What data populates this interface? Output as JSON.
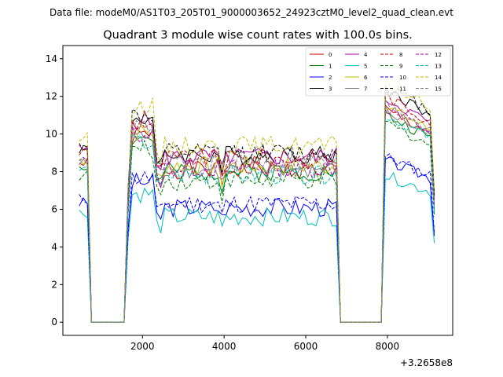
{
  "header": {
    "datafile": "Data file: modeM0/AS1T03_205T01_9000003652_24923cztM0_level2_quad_clean.evt"
  },
  "chart_data": {
    "type": "line",
    "title": "Quadrant 3 module wise count rates with 100.0s bins.",
    "xlabel": "",
    "ylabel": "",
    "x_offset_label": "+3.2658e8",
    "xlim": [
      50,
      9600
    ],
    "ylim": [
      -0.7,
      14.7
    ],
    "xticks": [
      2000,
      4000,
      6000,
      8000
    ],
    "yticks": [
      0,
      2,
      4,
      6,
      8,
      10,
      12,
      14
    ],
    "legend_position": "top-right",
    "segments": [
      {
        "x_start": 450,
        "x_end": 650,
        "step": 100
      },
      {
        "x_start": 750,
        "x_end": 1550,
        "step": 100
      },
      {
        "x_start": 1650,
        "x_end": 6750,
        "step": 100
      },
      {
        "x_start": 6850,
        "x_end": 7850,
        "step": 100
      },
      {
        "x_start": 7950,
        "x_end": 9150,
        "step": 100
      }
    ],
    "series": [
      {
        "name": "0",
        "color": "#d40000",
        "dash": "solid",
        "level": 8.1,
        "level2": 11.3,
        "seed": 1
      },
      {
        "name": "1",
        "color": "#007a00",
        "dash": "solid",
        "level": 8.0,
        "level2": 11.0,
        "seed": 2
      },
      {
        "name": "2",
        "color": "#0000ff",
        "dash": "solid",
        "level": 6.1,
        "level2": 8.6,
        "seed": 3
      },
      {
        "name": "3",
        "color": "#000000",
        "dash": "solid",
        "level": 8.9,
        "level2": 12.4,
        "seed": 4
      },
      {
        "name": "4",
        "color": "#b000b0",
        "dash": "solid",
        "level": 8.8,
        "level2": 11.9,
        "seed": 5
      },
      {
        "name": "5",
        "color": "#00bfbf",
        "dash": "solid",
        "level": 5.6,
        "level2": 7.8,
        "seed": 6
      },
      {
        "name": "6",
        "color": "#bfbf00",
        "dash": "solid",
        "level": 8.3,
        "level2": 11.5,
        "seed": 7
      },
      {
        "name": "7",
        "color": "#7f7f7f",
        "dash": "solid",
        "level": 8.1,
        "level2": 11.2,
        "seed": 8
      },
      {
        "name": "8",
        "color": "#d40000",
        "dash": "dashed",
        "level": 8.7,
        "level2": 12.0,
        "seed": 9
      },
      {
        "name": "9",
        "color": "#007a00",
        "dash": "dashed",
        "level": 7.5,
        "level2": 10.6,
        "seed": 10
      },
      {
        "name": "10",
        "color": "#0000ff",
        "dash": "dashed",
        "level": 6.3,
        "level2": 8.8,
        "seed": 11
      },
      {
        "name": "11",
        "color": "#000000",
        "dash": "dashed",
        "level": 9.0,
        "level2": 12.6,
        "seed": 12
      },
      {
        "name": "12",
        "color": "#b000b0",
        "dash": "dashed",
        "level": 8.2,
        "level2": 11.4,
        "seed": 13
      },
      {
        "name": "13",
        "color": "#00bfbf",
        "dash": "dashed",
        "level": 7.8,
        "level2": 11.0,
        "seed": 14
      },
      {
        "name": "14",
        "color": "#bfbf00",
        "dash": "dashed",
        "level": 9.4,
        "level2": 12.8,
        "seed": 15
      },
      {
        "name": "15",
        "color": "#7f7f7f",
        "dash": "dashed",
        "level": 8.5,
        "level2": 11.6,
        "seed": 16
      }
    ]
  }
}
